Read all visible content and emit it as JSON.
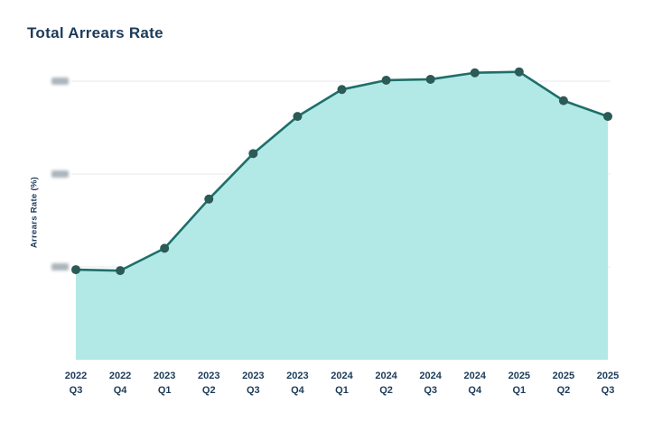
{
  "chart_data": {
    "type": "area",
    "title": "Total Arrears Rate",
    "xlabel": "",
    "ylabel": "Arrears Rate (%)",
    "categories": [
      "2022 Q3",
      "2022 Q4",
      "2023 Q1",
      "2023 Q2",
      "2023 Q3",
      "2023 Q4",
      "2024 Q1",
      "2024 Q2",
      "2024 Q3",
      "2024 Q4",
      "2025 Q1",
      "2025 Q2",
      "2025 Q3"
    ],
    "values_estimated": [
      0.97,
      0.96,
      1.2,
      1.73,
      2.22,
      2.62,
      2.91,
      3.01,
      3.02,
      3.09,
      3.1,
      2.79,
      2.62
    ],
    "value_units": "gridline units (y-axis tick labels are blurred/redacted in the screenshot; gridlines assumed at 1, 2, 3 with baseline 0)",
    "ylim": [
      0,
      3.2
    ],
    "y_ticks": [
      {
        "value": 1,
        "label_redacted": true
      },
      {
        "value": 2,
        "label_redacted": true
      },
      {
        "value": 3,
        "label_redacted": true
      }
    ],
    "grid": "horizontal",
    "legend": "none",
    "series_name": "Total Arrears Rate"
  },
  "colors": {
    "background": "#ffffff",
    "title_text": "#1c3b5a",
    "axis_text": "#1c3b5a",
    "line": "#1e6f6a",
    "point": "#2b5a57",
    "area_fill": "#b2e9e6",
    "gridline": "#ededf0",
    "redacted_tick": "#9da8b0"
  }
}
